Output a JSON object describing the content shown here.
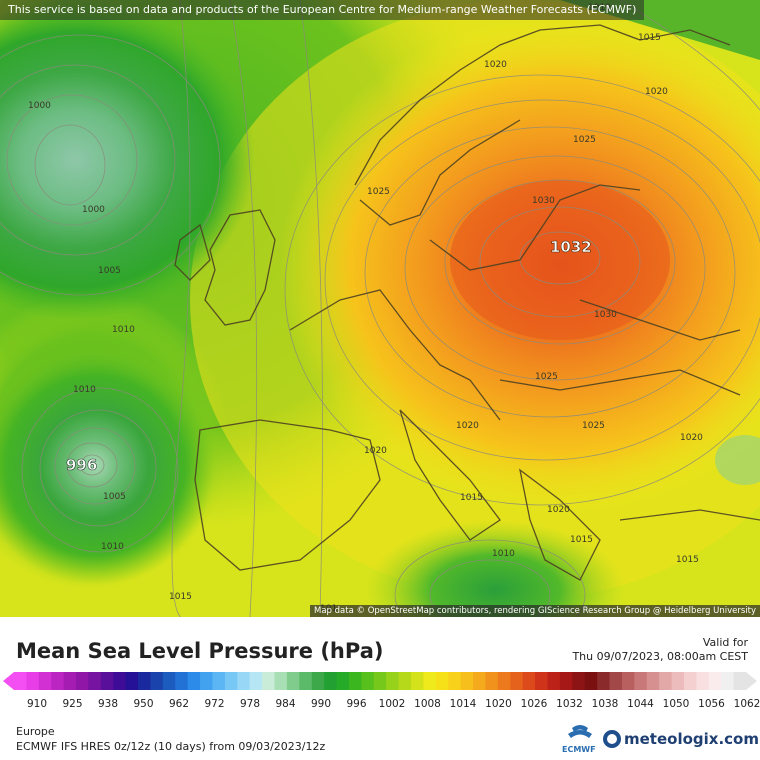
{
  "map": {
    "notice": "This service is based on data and products of the European Centre for Medium-range Weather Forecasts (ECMWF)",
    "attribution": "Map data © OpenStreetMap contributors, rendering GIScience Research Group @ Heidelberg University",
    "high_center_label": "1032",
    "low_center_label": "996",
    "isobar_labels": {
      "l1010_top": "1010",
      "l1015_ne": "1015",
      "l1020_scand": "1020",
      "l1020_ne": "1020",
      "l1025_n": "1025",
      "l1025_norway": "1025",
      "l1030_n": "1030",
      "l1030_s": "1030",
      "l1000_ice1": "1000",
      "l1000_ice2": "1000",
      "l1005_ice": "1005",
      "l1010_atl": "1010",
      "l1010_w": "1010",
      "l1005_low": "1005",
      "l1010_low": "1010",
      "l1015_sw": "1015",
      "l1020_alps": "1020",
      "l1020_fr": "1020",
      "l1025_c": "1025",
      "l1025_se": "1025",
      "l1020_east": "1020",
      "l1015_it": "1015",
      "l1020_gr": "1020",
      "l1015_gr": "1015",
      "l1010_med": "1010",
      "l1015_tr": "1015",
      "l101_bot": "101"
    }
  },
  "footer": {
    "title": "Mean Sea Level Pressure (hPa)",
    "valid_label": "Valid for",
    "valid_date": "Thu 09/07/2023, 08:00am CEST",
    "region": "Europe",
    "model_info": "ECMWF IFS HRES 0z/12z (10 days) from  09/03/2023/12z",
    "ecmwf_logo_text": "ECMWF",
    "brand": "meteologix.com"
  },
  "scale": {
    "tick_labels": [
      "910",
      "925",
      "938",
      "950",
      "962",
      "972",
      "978",
      "984",
      "990",
      "996",
      "1002",
      "1008",
      "1014",
      "1020",
      "1026",
      "1032",
      "1038",
      "1044",
      "1050",
      "1056",
      "1062"
    ],
    "colors": [
      "#f34ff3",
      "#e83ee8",
      "#d330d3",
      "#bb25c2",
      "#a51cb2",
      "#8f16a6",
      "#7613a0",
      "#5a0f9a",
      "#3e0c96",
      "#251098",
      "#1a2a9e",
      "#1a44ac",
      "#1d5cbf",
      "#2272d6",
      "#2c8ae8",
      "#42a2f0",
      "#5cb6f4",
      "#78c8f6",
      "#98d8f6",
      "#b6e6f4",
      "#c8ecd8",
      "#a8dfb4",
      "#7fcc8c",
      "#5bb96a",
      "#3ca84a",
      "#22a032",
      "#25ab28",
      "#3cb61e",
      "#58c01c",
      "#76c91a",
      "#96d219",
      "#b6d91a",
      "#d4e21b",
      "#eeea1b",
      "#f6e119",
      "#f8d11a",
      "#f7bf1b",
      "#f5a91c",
      "#f1921d",
      "#ec7a1d",
      "#e5621c",
      "#dc4a1b",
      "#cf341a",
      "#bd2219",
      "#a61818",
      "#8c1414",
      "#7a1010",
      "#8a2a2a",
      "#a24848",
      "#b86060",
      "#c87878",
      "#d69090",
      "#e2a8a8",
      "#ecbcbc",
      "#f4d0d0",
      "#f8e0e0",
      "#faecec",
      "#f0f0f0",
      "#e4e4e4"
    ]
  },
  "colors": {
    "high_core": "#e8561c",
    "land_border": "#5a4a2a",
    "isobar": "#8a8a7a"
  }
}
